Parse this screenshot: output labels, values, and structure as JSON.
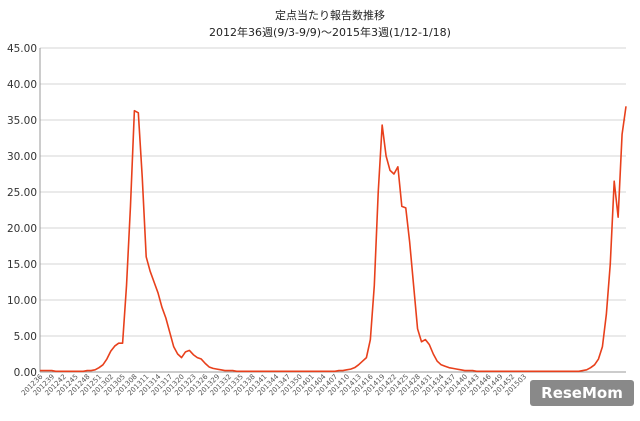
{
  "chart_data": {
    "type": "line",
    "title": "定点当たり報告数推移",
    "subtitle": "2012年36週(9/3-9/9)～2015年3週(1/12-1/18)",
    "xlabel": "",
    "ylabel": "",
    "ylim": [
      0,
      45
    ],
    "yticks": [
      "0.00",
      "5.00",
      "10.00",
      "15.00",
      "20.00",
      "25.00",
      "30.00",
      "35.00",
      "40.00",
      "45.00"
    ],
    "grid": true,
    "legend": "none",
    "line_color": "#e8401c",
    "x_tick_labels": [
      "201236",
      "201239",
      "201242",
      "201245",
      "201248",
      "201251",
      "201302",
      "201305",
      "201308",
      "201311",
      "201314",
      "201317",
      "201320",
      "201323",
      "201326",
      "201329",
      "201332",
      "201335",
      "201338",
      "201341",
      "201344",
      "201347",
      "201350",
      "201401",
      "201404",
      "201407",
      "201410",
      "201413",
      "201416",
      "201419",
      "201422",
      "201425",
      "201428",
      "201431",
      "201434",
      "201437",
      "201440",
      "201443",
      "201446",
      "201449",
      "201452",
      "201503"
    ],
    "series": [
      {
        "values": [
          0.2,
          0.2,
          0.2,
          0.2,
          0.1,
          0.1,
          0.1,
          0.1,
          0.1,
          0.1,
          0.1,
          0.1,
          0.2,
          0.2,
          0.3,
          0.6,
          1.0,
          1.8,
          2.9,
          3.6,
          4.0,
          4.0,
          12.0,
          23.0,
          36.3,
          36.0,
          27.0,
          16.0,
          14.0,
          12.5,
          11.0,
          9.0,
          7.5,
          5.5,
          3.5,
          2.5,
          2.0,
          2.8,
          3.0,
          2.4,
          2.0,
          1.8,
          1.2,
          0.7,
          0.5,
          0.4,
          0.3,
          0.2,
          0.2,
          0.2,
          0.1,
          0.1,
          0.1,
          0.1,
          0.1,
          0.1,
          0.1,
          0.1,
          0.1,
          0.1,
          0.1,
          0.1,
          0.1,
          0.1,
          0.1,
          0.1,
          0.1,
          0.1,
          0.1,
          0.1,
          0.1,
          0.1,
          0.1,
          0.1,
          0.1,
          0.1,
          0.2,
          0.2,
          0.3,
          0.4,
          0.6,
          1.0,
          1.5,
          2.0,
          4.5,
          12.0,
          25.0,
          34.3,
          30.0,
          28.0,
          27.5,
          28.5,
          23.0,
          22.8,
          18.0,
          12.0,
          6.0,
          4.2,
          4.5,
          3.8,
          2.5,
          1.5,
          1.0,
          0.8,
          0.6,
          0.5,
          0.4,
          0.3,
          0.2,
          0.2,
          0.2,
          0.1,
          0.1,
          0.1,
          0.1,
          0.1,
          0.1,
          0.1,
          0.1,
          0.1,
          0.1,
          0.1,
          0.1,
          0.1,
          0.1,
          0.1,
          0.1,
          0.1,
          0.1,
          0.1,
          0.1,
          0.1,
          0.1,
          0.1,
          0.1,
          0.1,
          0.1,
          0.1,
          0.2,
          0.3,
          0.6,
          1.0,
          1.8,
          3.5,
          8.0,
          15.0,
          26.5,
          21.5,
          33.0,
          36.9
        ]
      }
    ]
  },
  "watermark": {
    "text": "ReseMom"
  }
}
